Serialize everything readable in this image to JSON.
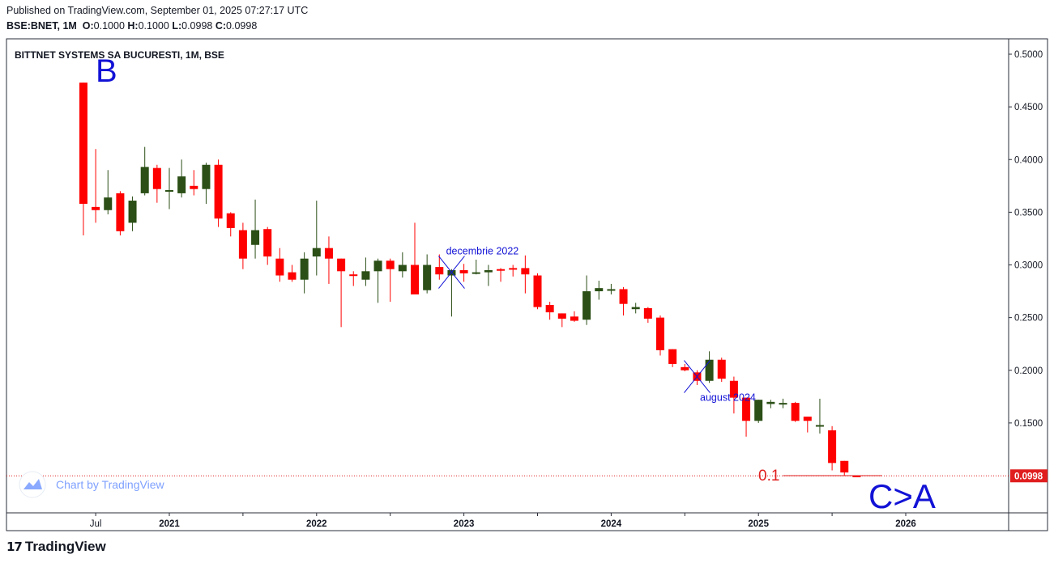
{
  "header": {
    "published": "Published on TradingView.com, September 01, 2025 07:27:17 UTC",
    "symbol": "BSE:BNET, 1M",
    "o_label": "O:",
    "o_value": "0.1000",
    "h_label": "H:",
    "h_value": "0.1000",
    "l_label": "L:",
    "l_value": "0.0998",
    "c_label": "C:",
    "c_value": "0.0998"
  },
  "footer": {
    "brand": "TradingView",
    "watermark": "Chart by TradingView"
  },
  "colors": {
    "up": "#2b4f16",
    "down": "#ff0000",
    "annotation_blue": "#1212d6",
    "price_line": "#e01e1e",
    "grid": "#e0e3eb",
    "border": "#2a2e39"
  },
  "chart_data": {
    "type": "candlestick",
    "title": "BITTNET SYSTEMS SA BUCURESTI, 1M, BSE",
    "interval": "1M",
    "ylim": [
      0.075,
      0.51
    ],
    "y_ticks": [
      "0.1500",
      "0.2000",
      "0.2500",
      "0.3000",
      "0.3500",
      "0.4000",
      "0.4500",
      "0.5000"
    ],
    "x_ticks": [
      "Jul",
      "2021",
      "2022",
      "2023",
      "2024",
      "2025",
      "2026"
    ],
    "last_price_label": "0.0998",
    "last_price": 0.0998,
    "grid": false,
    "candles": [
      {
        "t": "2020-06",
        "o": 0.473,
        "h": 0.473,
        "l": 0.328,
        "c": 0.358
      },
      {
        "t": "2020-07",
        "o": 0.355,
        "h": 0.41,
        "l": 0.34,
        "c": 0.352
      },
      {
        "t": "2020-08",
        "o": 0.352,
        "h": 0.39,
        "l": 0.348,
        "c": 0.364
      },
      {
        "t": "2020-09",
        "o": 0.368,
        "h": 0.37,
        "l": 0.328,
        "c": 0.332
      },
      {
        "t": "2020-10",
        "o": 0.34,
        "h": 0.365,
        "l": 0.332,
        "c": 0.361
      },
      {
        "t": "2020-11",
        "o": 0.368,
        "h": 0.412,
        "l": 0.366,
        "c": 0.393
      },
      {
        "t": "2020-12",
        "o": 0.392,
        "h": 0.395,
        "l": 0.359,
        "c": 0.372
      },
      {
        "t": "2021-01",
        "o": 0.37,
        "h": 0.392,
        "l": 0.353,
        "c": 0.371
      },
      {
        "t": "2021-02",
        "o": 0.368,
        "h": 0.4,
        "l": 0.364,
        "c": 0.384
      },
      {
        "t": "2021-03",
        "o": 0.375,
        "h": 0.39,
        "l": 0.366,
        "c": 0.372
      },
      {
        "t": "2021-04",
        "o": 0.372,
        "h": 0.397,
        "l": 0.358,
        "c": 0.395
      },
      {
        "t": "2021-05",
        "o": 0.395,
        "h": 0.4,
        "l": 0.336,
        "c": 0.344
      },
      {
        "t": "2021-06",
        "o": 0.349,
        "h": 0.35,
        "l": 0.327,
        "c": 0.335
      },
      {
        "t": "2021-07",
        "o": 0.333,
        "h": 0.34,
        "l": 0.296,
        "c": 0.306
      },
      {
        "t": "2021-08",
        "o": 0.319,
        "h": 0.362,
        "l": 0.306,
        "c": 0.333
      },
      {
        "t": "2021-09",
        "o": 0.334,
        "h": 0.336,
        "l": 0.3,
        "c": 0.308
      },
      {
        "t": "2021-10",
        "o": 0.306,
        "h": 0.316,
        "l": 0.284,
        "c": 0.29
      },
      {
        "t": "2021-11",
        "o": 0.293,
        "h": 0.3,
        "l": 0.284,
        "c": 0.286
      },
      {
        "t": "2021-12",
        "o": 0.286,
        "h": 0.312,
        "l": 0.273,
        "c": 0.306
      },
      {
        "t": "2022-01",
        "o": 0.308,
        "h": 0.361,
        "l": 0.29,
        "c": 0.316
      },
      {
        "t": "2022-02",
        "o": 0.316,
        "h": 0.327,
        "l": 0.282,
        "c": 0.306
      },
      {
        "t": "2022-03",
        "o": 0.306,
        "h": 0.306,
        "l": 0.241,
        "c": 0.294
      },
      {
        "t": "2022-04",
        "o": 0.291,
        "h": 0.294,
        "l": 0.28,
        "c": 0.29
      },
      {
        "t": "2022-05",
        "o": 0.286,
        "h": 0.307,
        "l": 0.28,
        "c": 0.294
      },
      {
        "t": "2022-06",
        "o": 0.294,
        "h": 0.306,
        "l": 0.264,
        "c": 0.304
      },
      {
        "t": "2022-07",
        "o": 0.304,
        "h": 0.306,
        "l": 0.265,
        "c": 0.296
      },
      {
        "t": "2022-08",
        "o": 0.294,
        "h": 0.312,
        "l": 0.288,
        "c": 0.3
      },
      {
        "t": "2022-09",
        "o": 0.3,
        "h": 0.34,
        "l": 0.272,
        "c": 0.272
      },
      {
        "t": "2022-10",
        "o": 0.276,
        "h": 0.31,
        "l": 0.273,
        "c": 0.3
      },
      {
        "t": "2022-11",
        "o": 0.298,
        "h": 0.31,
        "l": 0.286,
        "c": 0.291
      },
      {
        "t": "2022-12",
        "o": 0.29,
        "h": 0.296,
        "l": 0.251,
        "c": 0.295
      },
      {
        "t": "2023-01",
        "o": 0.295,
        "h": 0.301,
        "l": 0.284,
        "c": 0.292
      },
      {
        "t": "2023-02",
        "o": 0.292,
        "h": 0.305,
        "l": 0.291,
        "c": 0.293
      },
      {
        "t": "2023-03",
        "o": 0.293,
        "h": 0.3,
        "l": 0.28,
        "c": 0.295
      },
      {
        "t": "2023-04",
        "o": 0.296,
        "h": 0.297,
        "l": 0.284,
        "c": 0.295
      },
      {
        "t": "2023-05",
        "o": 0.297,
        "h": 0.3,
        "l": 0.289,
        "c": 0.296
      },
      {
        "t": "2023-06",
        "o": 0.297,
        "h": 0.309,
        "l": 0.273,
        "c": 0.291
      },
      {
        "t": "2023-07",
        "o": 0.29,
        "h": 0.292,
        "l": 0.258,
        "c": 0.26
      },
      {
        "t": "2023-08",
        "o": 0.262,
        "h": 0.265,
        "l": 0.248,
        "c": 0.255
      },
      {
        "t": "2023-09",
        "o": 0.254,
        "h": 0.254,
        "l": 0.241,
        "c": 0.249
      },
      {
        "t": "2023-10",
        "o": 0.251,
        "h": 0.256,
        "l": 0.246,
        "c": 0.247
      },
      {
        "t": "2023-11",
        "o": 0.248,
        "h": 0.29,
        "l": 0.243,
        "c": 0.275
      },
      {
        "t": "2023-12",
        "o": 0.275,
        "h": 0.285,
        "l": 0.267,
        "c": 0.278
      },
      {
        "t": "2024-01",
        "o": 0.276,
        "h": 0.282,
        "l": 0.272,
        "c": 0.277
      },
      {
        "t": "2024-02",
        "o": 0.277,
        "h": 0.279,
        "l": 0.252,
        "c": 0.263
      },
      {
        "t": "2024-03",
        "o": 0.258,
        "h": 0.264,
        "l": 0.254,
        "c": 0.26
      },
      {
        "t": "2024-04",
        "o": 0.259,
        "h": 0.26,
        "l": 0.245,
        "c": 0.249
      },
      {
        "t": "2024-05",
        "o": 0.25,
        "h": 0.252,
        "l": 0.214,
        "c": 0.219
      },
      {
        "t": "2024-06",
        "o": 0.22,
        "h": 0.22,
        "l": 0.203,
        "c": 0.206
      },
      {
        "t": "2024-07",
        "o": 0.203,
        "h": 0.206,
        "l": 0.199,
        "c": 0.2
      },
      {
        "t": "2024-08",
        "o": 0.198,
        "h": 0.2,
        "l": 0.186,
        "c": 0.19
      },
      {
        "t": "2024-09",
        "o": 0.19,
        "h": 0.218,
        "l": 0.188,
        "c": 0.21
      },
      {
        "t": "2024-10",
        "o": 0.21,
        "h": 0.212,
        "l": 0.189,
        "c": 0.192
      },
      {
        "t": "2024-11",
        "o": 0.19,
        "h": 0.194,
        "l": 0.159,
        "c": 0.174
      },
      {
        "t": "2024-12",
        "o": 0.174,
        "h": 0.174,
        "l": 0.137,
        "c": 0.152
      },
      {
        "t": "2025-01",
        "o": 0.152,
        "h": 0.172,
        "l": 0.15,
        "c": 0.172
      },
      {
        "t": "2025-02",
        "o": 0.168,
        "h": 0.172,
        "l": 0.164,
        "c": 0.17
      },
      {
        "t": "2025-03",
        "o": 0.168,
        "h": 0.173,
        "l": 0.164,
        "c": 0.169
      },
      {
        "t": "2025-04",
        "o": 0.169,
        "h": 0.17,
        "l": 0.151,
        "c": 0.152
      },
      {
        "t": "2025-05",
        "o": 0.156,
        "h": 0.156,
        "l": 0.141,
        "c": 0.152
      },
      {
        "t": "2025-06",
        "o": 0.147,
        "h": 0.173,
        "l": 0.14,
        "c": 0.148
      },
      {
        "t": "2025-07",
        "o": 0.143,
        "h": 0.147,
        "l": 0.105,
        "c": 0.112
      },
      {
        "t": "2025-08",
        "o": 0.114,
        "h": 0.114,
        "l": 0.1,
        "c": 0.103
      },
      {
        "t": "2025-09",
        "o": 0.1,
        "h": 0.1,
        "l": 0.0998,
        "c": 0.0998
      }
    ],
    "annotations": {
      "B": "B",
      "CA": "C>A",
      "level_label": "0.1",
      "level_value": 0.1,
      "mark1": {
        "text": "decembrie 2022",
        "t": "2022-12",
        "price": 0.293
      },
      "mark2": {
        "text": "august 2024",
        "t": "2024-08",
        "price": 0.194
      }
    }
  }
}
